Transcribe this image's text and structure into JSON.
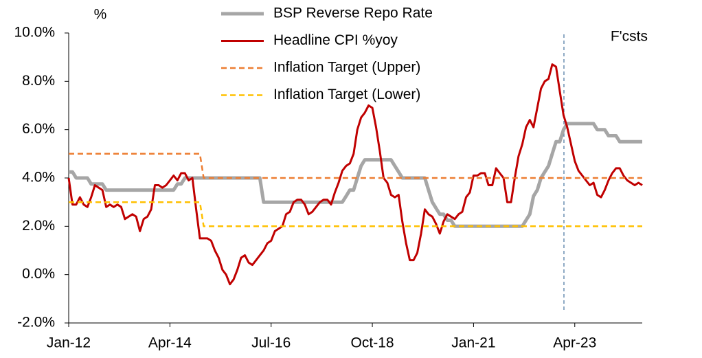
{
  "chart_data": {
    "type": "line",
    "y_label": "%",
    "annotation": "F'csts",
    "categories": [
      "Jan-12",
      null,
      null,
      null,
      null,
      null,
      null,
      null,
      null,
      null,
      null,
      null,
      null,
      null,
      null,
      null,
      null,
      null,
      null,
      null,
      null,
      null,
      null,
      null,
      null,
      null,
      null,
      "Apr-14",
      null,
      null,
      null,
      null,
      null,
      null,
      null,
      null,
      null,
      null,
      null,
      null,
      null,
      null,
      null,
      null,
      null,
      null,
      null,
      null,
      null,
      null,
      null,
      null,
      null,
      null,
      "Jul-16",
      null,
      null,
      null,
      null,
      null,
      null,
      null,
      null,
      null,
      null,
      null,
      null,
      null,
      null,
      null,
      null,
      null,
      null,
      null,
      null,
      null,
      null,
      null,
      null,
      null,
      null,
      "Oct-18",
      null,
      null,
      null,
      null,
      null,
      null,
      null,
      null,
      null,
      null,
      null,
      null,
      null,
      null,
      null,
      null,
      null,
      null,
      null,
      null,
      null,
      null,
      null,
      null,
      null,
      null,
      "Jan-21",
      null,
      null,
      null,
      null,
      null,
      null,
      null,
      null,
      null,
      null,
      null,
      null,
      null,
      null,
      null,
      null,
      null,
      null,
      null,
      null,
      null,
      null,
      null,
      null,
      null,
      null,
      "Apr-23",
      null,
      null,
      null,
      null,
      null,
      null,
      null,
      null,
      null,
      null,
      null,
      null,
      null,
      null,
      null,
      null,
      null,
      null
    ],
    "series": [
      {
        "name": "BSP Reverse Repo Rate",
        "color": "#a6a6a6",
        "dash": false,
        "values": [
          4.25,
          4.25,
          4.0,
          4.0,
          4.0,
          4.0,
          3.75,
          3.75,
          3.75,
          3.75,
          3.5,
          3.5,
          3.5,
          3.5,
          3.5,
          3.5,
          3.5,
          3.5,
          3.5,
          3.5,
          3.5,
          3.5,
          3.5,
          3.5,
          3.5,
          3.5,
          3.5,
          3.5,
          3.5,
          3.75,
          3.75,
          4.0,
          4.0,
          4.0,
          4.0,
          4.0,
          4.0,
          4.0,
          4.0,
          4.0,
          4.0,
          4.0,
          4.0,
          4.0,
          4.0,
          4.0,
          4.0,
          4.0,
          4.0,
          4.0,
          4.0,
          4.0,
          3.0,
          3.0,
          3.0,
          3.0,
          3.0,
          3.0,
          3.0,
          3.0,
          3.0,
          3.0,
          3.0,
          3.0,
          3.0,
          3.0,
          3.0,
          3.0,
          3.0,
          3.0,
          3.0,
          3.0,
          3.0,
          3.0,
          3.25,
          3.5,
          3.5,
          4.0,
          4.5,
          4.75,
          4.75,
          4.75,
          4.75,
          4.75,
          4.75,
          4.75,
          4.75,
          4.5,
          4.25,
          4.0,
          4.0,
          4.0,
          4.0,
          4.0,
          4.0,
          4.0,
          3.5,
          3.0,
          2.75,
          2.5,
          2.5,
          2.25,
          2.25,
          2.0,
          2.0,
          2.0,
          2.0,
          2.0,
          2.0,
          2.0,
          2.0,
          2.0,
          2.0,
          2.0,
          2.0,
          2.0,
          2.0,
          2.0,
          2.0,
          2.0,
          2.0,
          2.0,
          2.25,
          2.5,
          3.25,
          3.5,
          4.0,
          4.25,
          4.5,
          5.0,
          5.5,
          5.5,
          6.0,
          6.25,
          6.25,
          6.25,
          6.25,
          6.25,
          6.25,
          6.25,
          6.25,
          6.0,
          6.0,
          6.0,
          5.75,
          5.75,
          5.75,
          5.5,
          5.5,
          5.5,
          5.5,
          5.5,
          5.5,
          5.5
        ]
      },
      {
        "name": "Headline CPI %yoy",
        "color": "#c00000",
        "dash": false,
        "values": [
          4.0,
          2.9,
          2.9,
          3.2,
          2.9,
          2.8,
          3.2,
          3.7,
          3.6,
          3.5,
          2.8,
          2.9,
          2.8,
          2.9,
          2.8,
          2.3,
          2.4,
          2.5,
          2.4,
          1.8,
          2.3,
          2.4,
          2.7,
          3.7,
          3.7,
          3.6,
          3.7,
          3.9,
          4.1,
          3.9,
          4.2,
          4.2,
          3.9,
          4.0,
          2.7,
          1.5,
          1.5,
          1.5,
          1.4,
          1.0,
          0.7,
          0.2,
          0.0,
          -0.4,
          -0.2,
          0.2,
          0.7,
          0.8,
          0.5,
          0.4,
          0.6,
          0.8,
          1.0,
          1.3,
          1.4,
          1.8,
          1.9,
          2.0,
          2.5,
          2.6,
          3.0,
          3.1,
          3.1,
          2.9,
          2.5,
          2.6,
          2.8,
          3.0,
          3.1,
          3.1,
          2.9,
          3.4,
          3.8,
          4.3,
          4.5,
          4.6,
          5.0,
          6.0,
          6.5,
          6.7,
          7.0,
          6.9,
          6.1,
          5.1,
          4.0,
          3.8,
          3.3,
          3.2,
          3.3,
          2.2,
          1.3,
          0.6,
          0.6,
          0.9,
          1.7,
          2.7,
          2.5,
          2.4,
          2.1,
          1.7,
          2.2,
          2.5,
          2.4,
          2.3,
          2.5,
          2.6,
          3.2,
          3.4,
          4.1,
          4.1,
          4.2,
          4.2,
          3.7,
          3.7,
          4.4,
          4.2,
          4.0,
          3.0,
          3.0,
          4.0,
          4.9,
          5.4,
          6.1,
          6.4,
          6.1,
          6.9,
          7.7,
          8.0,
          8.1,
          8.7,
          8.6,
          7.6,
          6.6,
          6.1,
          5.4,
          4.7,
          4.3,
          4.1,
          3.9,
          3.7,
          3.8,
          3.3,
          3.2,
          3.5,
          3.9,
          4.2,
          4.4,
          4.4,
          4.1,
          3.9,
          3.8,
          3.7,
          3.8,
          3.7
        ]
      },
      {
        "name": "Inflation Target (Upper)",
        "color": "#ed7d31",
        "dash": true,
        "values": [
          5.0,
          5.0,
          5.0,
          5.0,
          5.0,
          5.0,
          5.0,
          5.0,
          5.0,
          5.0,
          5.0,
          5.0,
          5.0,
          5.0,
          5.0,
          5.0,
          5.0,
          5.0,
          5.0,
          5.0,
          5.0,
          5.0,
          5.0,
          5.0,
          5.0,
          5.0,
          5.0,
          5.0,
          5.0,
          5.0,
          5.0,
          5.0,
          5.0,
          5.0,
          5.0,
          5.0,
          4.0,
          4.0,
          4.0,
          4.0,
          4.0,
          4.0,
          4.0,
          4.0,
          4.0,
          4.0,
          4.0,
          4.0,
          4.0,
          4.0,
          4.0,
          4.0,
          4.0,
          4.0,
          4.0,
          4.0,
          4.0,
          4.0,
          4.0,
          4.0,
          4.0,
          4.0,
          4.0,
          4.0,
          4.0,
          4.0,
          4.0,
          4.0,
          4.0,
          4.0,
          4.0,
          4.0,
          4.0,
          4.0,
          4.0,
          4.0,
          4.0,
          4.0,
          4.0,
          4.0,
          4.0,
          4.0,
          4.0,
          4.0,
          4.0,
          4.0,
          4.0,
          4.0,
          4.0,
          4.0,
          4.0,
          4.0,
          4.0,
          4.0,
          4.0,
          4.0,
          4.0,
          4.0,
          4.0,
          4.0,
          4.0,
          4.0,
          4.0,
          4.0,
          4.0,
          4.0,
          4.0,
          4.0,
          4.0,
          4.0,
          4.0,
          4.0,
          4.0,
          4.0,
          4.0,
          4.0,
          4.0,
          4.0,
          4.0,
          4.0,
          4.0,
          4.0,
          4.0,
          4.0,
          4.0,
          4.0,
          4.0,
          4.0,
          4.0,
          4.0,
          4.0,
          4.0,
          4.0,
          4.0,
          4.0,
          4.0,
          4.0,
          4.0,
          4.0,
          4.0,
          4.0,
          4.0,
          4.0,
          4.0,
          4.0,
          4.0,
          4.0,
          4.0,
          4.0,
          4.0,
          4.0,
          4.0,
          4.0,
          4.0
        ]
      },
      {
        "name": "Inflation Target (Lower)",
        "color": "#ffc000",
        "dash": true,
        "values": [
          3.0,
          3.0,
          3.0,
          3.0,
          3.0,
          3.0,
          3.0,
          3.0,
          3.0,
          3.0,
          3.0,
          3.0,
          3.0,
          3.0,
          3.0,
          3.0,
          3.0,
          3.0,
          3.0,
          3.0,
          3.0,
          3.0,
          3.0,
          3.0,
          3.0,
          3.0,
          3.0,
          3.0,
          3.0,
          3.0,
          3.0,
          3.0,
          3.0,
          3.0,
          3.0,
          3.0,
          2.0,
          2.0,
          2.0,
          2.0,
          2.0,
          2.0,
          2.0,
          2.0,
          2.0,
          2.0,
          2.0,
          2.0,
          2.0,
          2.0,
          2.0,
          2.0,
          2.0,
          2.0,
          2.0,
          2.0,
          2.0,
          2.0,
          2.0,
          2.0,
          2.0,
          2.0,
          2.0,
          2.0,
          2.0,
          2.0,
          2.0,
          2.0,
          2.0,
          2.0,
          2.0,
          2.0,
          2.0,
          2.0,
          2.0,
          2.0,
          2.0,
          2.0,
          2.0,
          2.0,
          2.0,
          2.0,
          2.0,
          2.0,
          2.0,
          2.0,
          2.0,
          2.0,
          2.0,
          2.0,
          2.0,
          2.0,
          2.0,
          2.0,
          2.0,
          2.0,
          2.0,
          2.0,
          2.0,
          2.0,
          2.0,
          2.0,
          2.0,
          2.0,
          2.0,
          2.0,
          2.0,
          2.0,
          2.0,
          2.0,
          2.0,
          2.0,
          2.0,
          2.0,
          2.0,
          2.0,
          2.0,
          2.0,
          2.0,
          2.0,
          2.0,
          2.0,
          2.0,
          2.0,
          2.0,
          2.0,
          2.0,
          2.0,
          2.0,
          2.0,
          2.0,
          2.0,
          2.0,
          2.0,
          2.0,
          2.0,
          2.0,
          2.0,
          2.0,
          2.0,
          2.0,
          2.0,
          2.0,
          2.0,
          2.0,
          2.0,
          2.0,
          2.0,
          2.0,
          2.0,
          2.0,
          2.0,
          2.0,
          2.0
        ]
      }
    ],
    "ylim": [
      -2,
      10
    ],
    "yticks": [
      {
        "value": -2,
        "label": "-2.0%"
      },
      {
        "value": 0,
        "label": "0.0%"
      },
      {
        "value": 2,
        "label": "2.0%"
      },
      {
        "value": 4,
        "label": "4.0%"
      },
      {
        "value": 6,
        "label": "6.0%"
      },
      {
        "value": 8,
        "label": "8.0%"
      },
      {
        "value": 10,
        "label": "10.0%"
      }
    ],
    "legend": "top"
  }
}
